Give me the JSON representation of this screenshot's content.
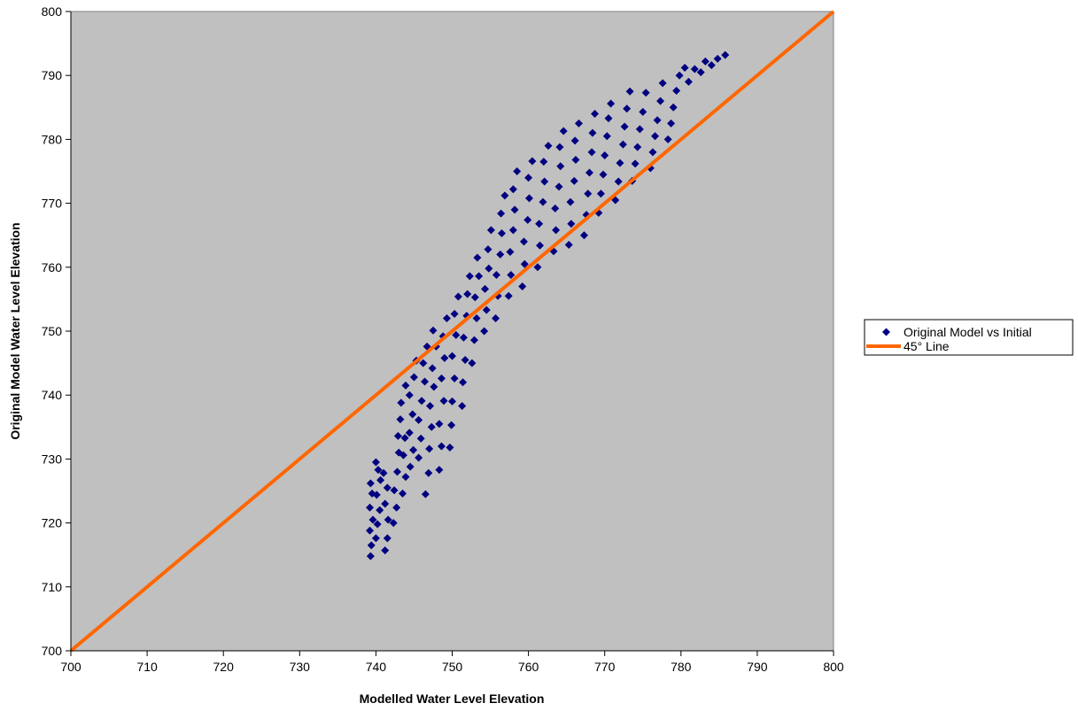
{
  "chart_data": {
    "type": "scatter",
    "title": "",
    "xlabel": "Modelled Water Level Elevation",
    "ylabel": "Original Model Water Level Elevation",
    "xlim": [
      700,
      800
    ],
    "ylim": [
      700,
      800
    ],
    "xticks": [
      "700",
      "710",
      "720",
      "730",
      "740",
      "750",
      "760",
      "770",
      "780",
      "790",
      "800"
    ],
    "yticks": [
      "700",
      "710",
      "720",
      "730",
      "740",
      "750",
      "760",
      "770",
      "780",
      "790",
      "800"
    ],
    "grid": false,
    "plot_background": "#C0C0C0",
    "legend_position": "right",
    "legend": [
      {
        "label": "Original Model vs Initial",
        "marker": "diamond",
        "color": "#000080"
      },
      {
        "label": "45° Line",
        "marker": "line",
        "color": "#FF6600"
      }
    ],
    "series": [
      {
        "name": "Original Model vs Initial",
        "kind": "scatter",
        "color": "#000080",
        "points": [
          [
            739.3,
            714.8
          ],
          [
            739.4,
            716.5
          ],
          [
            739.2,
            718.8
          ],
          [
            739.6,
            720.5
          ],
          [
            739.2,
            722.4
          ],
          [
            739.5,
            724.6
          ],
          [
            739.3,
            726.2
          ],
          [
            740.0,
            717.6
          ],
          [
            740.2,
            719.8
          ],
          [
            740.5,
            722.0
          ],
          [
            740.1,
            724.4
          ],
          [
            740.6,
            726.7
          ],
          [
            740.3,
            728.3
          ],
          [
            740.0,
            729.5
          ],
          [
            741.2,
            715.7
          ],
          [
            741.5,
            717.6
          ],
          [
            741.6,
            720.5
          ],
          [
            741.2,
            723.0
          ],
          [
            741.5,
            725.5
          ],
          [
            741.0,
            727.8
          ],
          [
            742.3,
            720.0
          ],
          [
            742.7,
            722.4
          ],
          [
            742.4,
            725.1
          ],
          [
            742.8,
            728.0
          ],
          [
            743.0,
            731.0
          ],
          [
            742.9,
            733.6
          ],
          [
            743.5,
            724.6
          ],
          [
            743.9,
            727.2
          ],
          [
            743.6,
            730.6
          ],
          [
            743.8,
            733.3
          ],
          [
            743.2,
            736.2
          ],
          [
            743.3,
            738.8
          ],
          [
            743.9,
            741.5
          ],
          [
            744.5,
            728.8
          ],
          [
            744.9,
            731.4
          ],
          [
            744.4,
            734.1
          ],
          [
            744.8,
            737.0
          ],
          [
            744.4,
            740.0
          ],
          [
            745.0,
            742.8
          ],
          [
            745.3,
            745.4
          ],
          [
            745.6,
            730.2
          ],
          [
            745.9,
            733.2
          ],
          [
            745.6,
            736.1
          ],
          [
            746.0,
            739.1
          ],
          [
            746.4,
            742.1
          ],
          [
            746.2,
            745.0
          ],
          [
            746.7,
            747.6
          ],
          [
            746.5,
            724.5
          ],
          [
            746.9,
            727.8
          ],
          [
            747.0,
            731.6
          ],
          [
            747.3,
            735.0
          ],
          [
            747.1,
            738.3
          ],
          [
            747.6,
            741.3
          ],
          [
            747.4,
            744.2
          ],
          [
            747.9,
            747.6
          ],
          [
            747.5,
            750.1
          ],
          [
            748.3,
            728.3
          ],
          [
            748.6,
            732.0
          ],
          [
            748.3,
            735.5
          ],
          [
            748.9,
            739.1
          ],
          [
            748.6,
            742.6
          ],
          [
            749.0,
            745.8
          ],
          [
            748.8,
            749.2
          ],
          [
            749.3,
            752.0
          ],
          [
            749.7,
            731.8
          ],
          [
            749.9,
            735.3
          ],
          [
            750.0,
            739.0
          ],
          [
            750.3,
            742.6
          ],
          [
            750.0,
            746.1
          ],
          [
            750.5,
            749.4
          ],
          [
            750.3,
            752.7
          ],
          [
            750.8,
            755.4
          ],
          [
            751.3,
            738.3
          ],
          [
            751.4,
            742.0
          ],
          [
            751.7,
            745.5
          ],
          [
            751.5,
            749.0
          ],
          [
            751.9,
            752.4
          ],
          [
            752.0,
            755.8
          ],
          [
            752.3,
            758.6
          ],
          [
            752.6,
            745.0
          ],
          [
            752.9,
            748.6
          ],
          [
            753.2,
            752.0
          ],
          [
            753.0,
            755.3
          ],
          [
            753.5,
            758.6
          ],
          [
            753.3,
            761.5
          ],
          [
            754.2,
            750.0
          ],
          [
            754.5,
            753.3
          ],
          [
            754.3,
            756.6
          ],
          [
            754.8,
            759.8
          ],
          [
            754.7,
            762.8
          ],
          [
            755.1,
            765.8
          ],
          [
            755.7,
            752.0
          ],
          [
            756.0,
            755.5
          ],
          [
            755.8,
            758.8
          ],
          [
            756.3,
            762.0
          ],
          [
            756.5,
            765.3
          ],
          [
            756.4,
            768.4
          ],
          [
            756.9,
            771.2
          ],
          [
            757.4,
            755.5
          ],
          [
            757.7,
            758.8
          ],
          [
            757.6,
            762.4
          ],
          [
            758.0,
            765.8
          ],
          [
            758.2,
            769.0
          ],
          [
            758.0,
            772.2
          ],
          [
            758.5,
            775.0
          ],
          [
            759.2,
            757.0
          ],
          [
            759.5,
            760.5
          ],
          [
            759.4,
            764.0
          ],
          [
            759.9,
            767.4
          ],
          [
            760.1,
            770.8
          ],
          [
            760.0,
            774.0
          ],
          [
            760.5,
            776.6
          ],
          [
            761.2,
            760.0
          ],
          [
            761.5,
            763.4
          ],
          [
            761.4,
            766.8
          ],
          [
            761.9,
            770.2
          ],
          [
            762.1,
            773.4
          ],
          [
            762.0,
            776.5
          ],
          [
            762.6,
            779.0
          ],
          [
            763.3,
            762.5
          ],
          [
            763.6,
            765.8
          ],
          [
            763.5,
            769.2
          ],
          [
            764.0,
            772.6
          ],
          [
            764.2,
            775.8
          ],
          [
            764.1,
            778.8
          ],
          [
            764.6,
            781.3
          ],
          [
            765.3,
            763.5
          ],
          [
            765.6,
            766.8
          ],
          [
            765.5,
            770.2
          ],
          [
            766.0,
            773.5
          ],
          [
            766.2,
            776.8
          ],
          [
            766.1,
            779.8
          ],
          [
            766.6,
            782.5
          ],
          [
            767.3,
            765.0
          ],
          [
            767.6,
            768.2
          ],
          [
            767.8,
            771.5
          ],
          [
            768.0,
            774.8
          ],
          [
            768.3,
            778.0
          ],
          [
            768.4,
            781.0
          ],
          [
            768.7,
            784.0
          ],
          [
            769.2,
            768.5
          ],
          [
            769.5,
            771.5
          ],
          [
            769.8,
            774.5
          ],
          [
            770.0,
            777.5
          ],
          [
            770.3,
            780.5
          ],
          [
            770.5,
            783.3
          ],
          [
            770.8,
            785.6
          ],
          [
            771.4,
            770.5
          ],
          [
            771.8,
            773.4
          ],
          [
            772.0,
            776.3
          ],
          [
            772.4,
            779.2
          ],
          [
            772.6,
            782.0
          ],
          [
            772.9,
            784.8
          ],
          [
            773.3,
            787.5
          ],
          [
            773.6,
            773.5
          ],
          [
            774.0,
            776.2
          ],
          [
            774.3,
            778.8
          ],
          [
            774.6,
            781.6
          ],
          [
            775.0,
            784.3
          ],
          [
            775.4,
            787.3
          ],
          [
            776.0,
            775.5
          ],
          [
            776.3,
            778.0
          ],
          [
            776.6,
            780.5
          ],
          [
            776.9,
            783.0
          ],
          [
            777.3,
            786.0
          ],
          [
            777.6,
            788.8
          ],
          [
            778.3,
            780.0
          ],
          [
            778.7,
            782.5
          ],
          [
            779.0,
            785.0
          ],
          [
            779.4,
            787.6
          ],
          [
            779.8,
            790.0
          ],
          [
            780.5,
            791.2
          ],
          [
            781.0,
            789.0
          ],
          [
            781.8,
            791.0
          ],
          [
            782.6,
            790.5
          ],
          [
            783.2,
            792.2
          ],
          [
            784.0,
            791.6
          ],
          [
            784.8,
            792.6
          ],
          [
            785.8,
            793.2
          ]
        ]
      },
      {
        "name": "45° Line",
        "kind": "line",
        "color": "#FF6600",
        "points": [
          [
            700,
            700
          ],
          [
            800,
            800
          ]
        ]
      }
    ]
  }
}
